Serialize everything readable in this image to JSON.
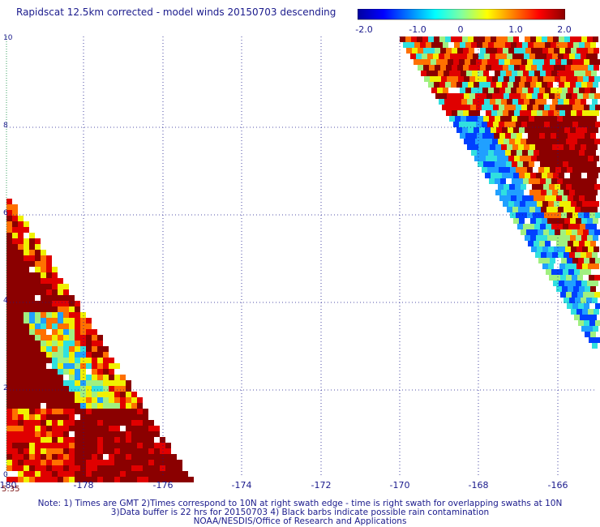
{
  "title": "Rapidscat 12.5km corrected - model winds 20150703 descending",
  "colorbar": {
    "ticks": [
      "-2.0",
      "-1.0",
      "0",
      "1.0",
      "2.0"
    ],
    "min": -2.0,
    "max": 2.0,
    "colors": [
      "#0000a0",
      "#0000ff",
      "#0080ff",
      "#00ffff",
      "#80ffa0",
      "#ffff00",
      "#ff8000",
      "#ff0000",
      "#8b0000"
    ]
  },
  "map": {
    "x_ticks": [
      "-180",
      "-178",
      "-176",
      "-174",
      "-172",
      "-170",
      "-168",
      "-166"
    ],
    "y_ticks": [
      "0",
      "2",
      "4",
      "6",
      "8",
      "10"
    ],
    "lon_range": [
      -180,
      -165.4
    ],
    "lat_range": [
      0,
      10
    ]
  },
  "time_label": "5:35",
  "notes": [
    "Note: 1) Times are GMT 2)Times correspond to 10N at right swath edge - time is right swath for overlapping swaths at 10N",
    "3)Data buffer is 22 hrs for 20150703 4) Black barbs indicate possible rain contamination",
    "NOAA/NESDIS/Office of Research and Applications"
  ],
  "colors": {
    "text": "#1a1a8c",
    "grid": "#1a1a8c",
    "time_label": "#7a1010"
  }
}
